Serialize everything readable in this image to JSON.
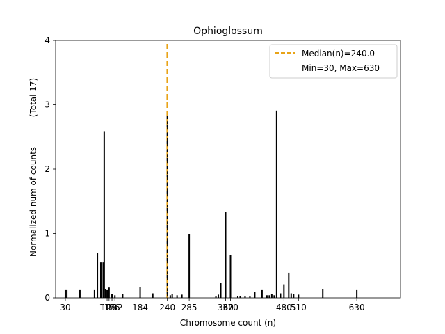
{
  "chart_data": {
    "type": "bar",
    "title": "Ophioglossum",
    "xlabel": "Chromosome count (n)",
    "ylabel": "Normalized num of counts",
    "ylabel_note": "(Total 17)",
    "xlim": [
      10,
      720
    ],
    "ylim": [
      0,
      4
    ],
    "yticks": [
      0,
      1,
      2,
      3,
      4
    ],
    "xtick_labels": [
      "30",
      "116",
      "120",
      "126",
      "132",
      "184",
      "240",
      "285",
      "360",
      "370",
      "480",
      "510",
      "630"
    ],
    "xtick_values": [
      30,
      116,
      120,
      126,
      132,
      184,
      240,
      285,
      360,
      370,
      480,
      510,
      630
    ],
    "bars": [
      {
        "x": 30,
        "y": 0.12
      },
      {
        "x": 33,
        "y": 0.12
      },
      {
        "x": 60,
        "y": 0.12
      },
      {
        "x": 90,
        "y": 0.12
      },
      {
        "x": 96,
        "y": 0.7
      },
      {
        "x": 103,
        "y": 0.55
      },
      {
        "x": 104,
        "y": 0.12
      },
      {
        "x": 108,
        "y": 0.55
      },
      {
        "x": 110,
        "y": 2.59
      },
      {
        "x": 113,
        "y": 0.14
      },
      {
        "x": 116,
        "y": 0.12
      },
      {
        "x": 120,
        "y": 0.16
      },
      {
        "x": 126,
        "y": 0.06
      },
      {
        "x": 132,
        "y": 0.04
      },
      {
        "x": 148,
        "y": 0.06
      },
      {
        "x": 184,
        "y": 0.17
      },
      {
        "x": 210,
        "y": 0.07
      },
      {
        "x": 240,
        "y": 2.83
      },
      {
        "x": 246,
        "y": 0.04
      },
      {
        "x": 250,
        "y": 0.06
      },
      {
        "x": 260,
        "y": 0.04
      },
      {
        "x": 270,
        "y": 0.05
      },
      {
        "x": 285,
        "y": 0.99
      },
      {
        "x": 340,
        "y": 0.03
      },
      {
        "x": 345,
        "y": 0.05
      },
      {
        "x": 350,
        "y": 0.23
      },
      {
        "x": 360,
        "y": 1.33
      },
      {
        "x": 370,
        "y": 0.67
      },
      {
        "x": 385,
        "y": 0.03
      },
      {
        "x": 390,
        "y": 0.03
      },
      {
        "x": 400,
        "y": 0.03
      },
      {
        "x": 410,
        "y": 0.03
      },
      {
        "x": 420,
        "y": 0.09
      },
      {
        "x": 435,
        "y": 0.12
      },
      {
        "x": 445,
        "y": 0.04
      },
      {
        "x": 450,
        "y": 0.04
      },
      {
        "x": 455,
        "y": 0.06
      },
      {
        "x": 460,
        "y": 0.04
      },
      {
        "x": 465,
        "y": 2.91
      },
      {
        "x": 473,
        "y": 0.07
      },
      {
        "x": 480,
        "y": 0.21
      },
      {
        "x": 490,
        "y": 0.39
      },
      {
        "x": 495,
        "y": 0.07
      },
      {
        "x": 500,
        "y": 0.06
      },
      {
        "x": 510,
        "y": 0.05
      },
      {
        "x": 560,
        "y": 0.14
      },
      {
        "x": 630,
        "y": 0.12
      }
    ],
    "median": 240.0,
    "min": 30,
    "max": 630,
    "legend": {
      "position": "top-right",
      "median_label": "Median(n)=240.0",
      "range_label": "Min=30, Max=630"
    },
    "colors": {
      "bar": "#000000",
      "median_line": "#e8a317",
      "median_bar_dash": "#000000"
    }
  }
}
